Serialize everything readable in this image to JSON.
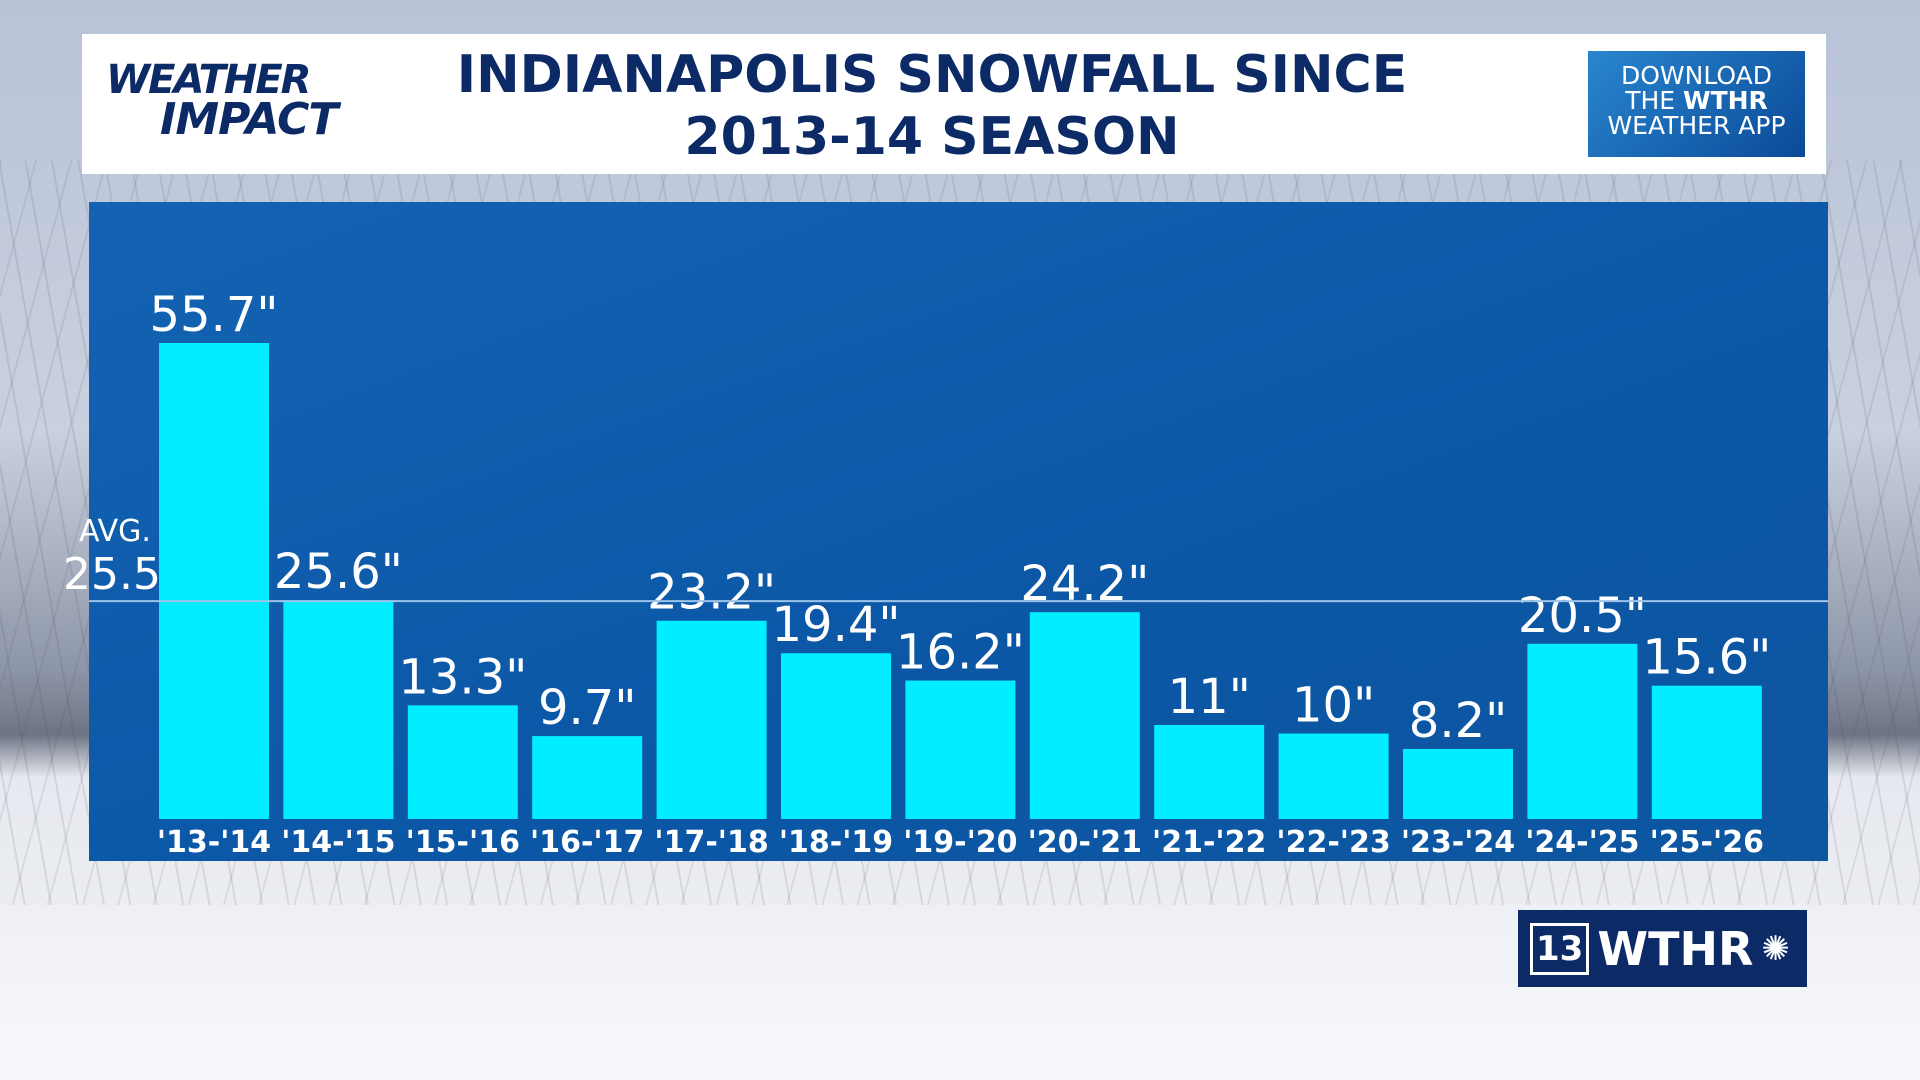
{
  "header": {
    "logo_line1": "WEATHER",
    "logo_line2": "IMPACT",
    "title_line1": "INDIANAPOLIS SNOWFALL SINCE",
    "title_line2": "2013-14 SEASON",
    "app_promo": {
      "line1": "DOWNLOAD",
      "line2_a": "THE ",
      "line2_b": "WTHR",
      "line3": "WEATHER APP"
    }
  },
  "station_logo": {
    "number": "13",
    "name": "WTHR",
    "icon": "nbc-peacock-icon"
  },
  "colors": {
    "bar": "#00eeff",
    "panel": "#0b57a6",
    "text": "#0b2a66"
  },
  "chart_data": {
    "type": "bar",
    "title": "INDIANAPOLIS SNOWFALL SINCE 2013-14 SEASON",
    "categories": [
      "'13-'14",
      "'14-'15",
      "'15-'16",
      "'16-'17",
      "'17-'18",
      "'18-'19",
      "'19-'20",
      "'20-'21",
      "'21-'22",
      "'22-'23",
      "'23-'24",
      "'24-'25",
      "'25-'26"
    ],
    "values": [
      55.7,
      25.6,
      13.3,
      9.7,
      23.2,
      19.4,
      16.2,
      24.2,
      11,
      10,
      8.2,
      20.5,
      15.6
    ],
    "data_labels": [
      "55.7\"",
      "25.6\"",
      "13.3\"",
      "9.7\"",
      "23.2\"",
      "19.4\"",
      "16.2\"",
      "24.2\"",
      "11\"",
      "10\"",
      "8.2\"",
      "20.5\"",
      "15.6\""
    ],
    "reference_line": {
      "label": "AVG.",
      "value": 25.5,
      "value_label": "25.5\""
    },
    "ylim": [
      0,
      64
    ],
    "grid": false,
    "legend": "none"
  }
}
